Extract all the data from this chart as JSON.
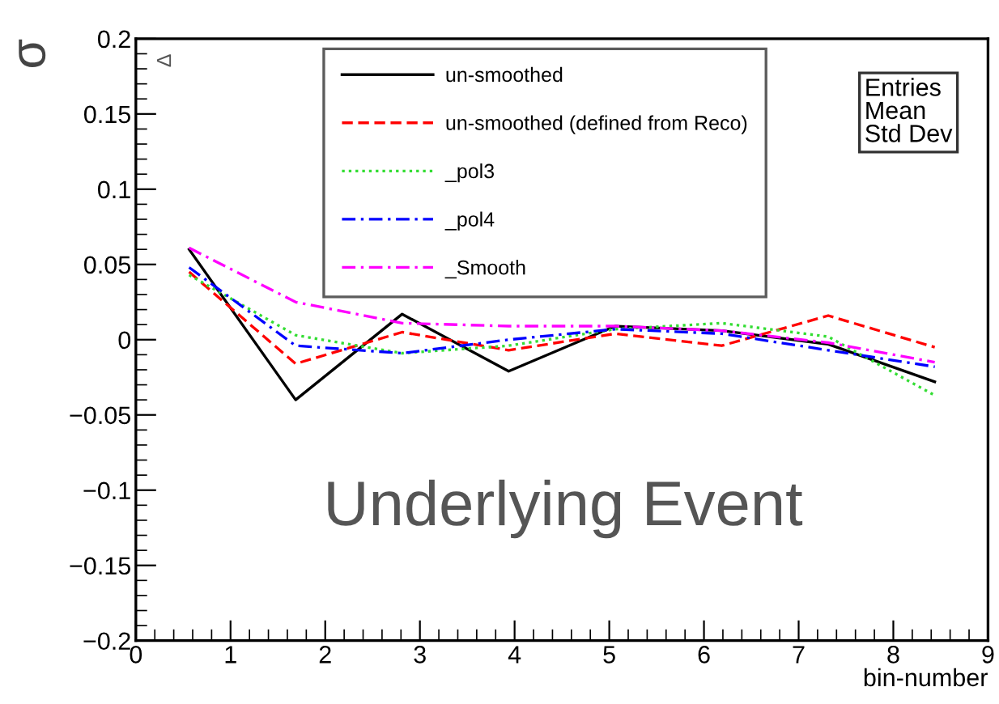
{
  "chart_data": {
    "type": "line",
    "xlabel": "bin-number",
    "ylabel": "σ",
    "x": [
      0.5625,
      1.6875,
      2.8125,
      3.9375,
      5.0625,
      6.1875,
      7.3125,
      8.4375
    ],
    "series": [
      {
        "name": "un-smoothed",
        "color": "#000000",
        "line_style": "solid",
        "values": [
          0.06,
          -0.04,
          0.017,
          -0.021,
          0.009,
          0.006,
          -0.003,
          -0.028
        ]
      },
      {
        "name": "un-smoothed (defined from Reco)",
        "color": "#ff0000",
        "line_style": "dashed",
        "values": [
          0.045,
          -0.016,
          0.005,
          -0.007,
          0.004,
          -0.004,
          0.016,
          -0.005
        ]
      },
      {
        "name": "_pol3",
        "color": "#33dd33",
        "line_style": "dotted",
        "values": [
          0.043,
          0.003,
          -0.009,
          -0.004,
          0.007,
          0.011,
          0.002,
          -0.037
        ]
      },
      {
        "name": "_pol4",
        "color": "#0000ff",
        "line_style": "dashdot",
        "values": [
          0.048,
          -0.004,
          -0.009,
          0.0,
          0.007,
          0.004,
          -0.007,
          -0.018
        ]
      },
      {
        "name": "_Smooth",
        "color": "#ff00ff",
        "line_style": "dashdot",
        "values": [
          0.061,
          0.025,
          0.011,
          0.009,
          0.009,
          0.006,
          -0.002,
          -0.015
        ]
      }
    ],
    "xlim": [
      0,
      9
    ],
    "xticks": [
      0,
      1,
      2,
      3,
      4,
      5,
      6,
      7,
      8,
      9
    ],
    "ylim": [
      -0.2,
      0.2
    ],
    "yticks": [
      {
        "value": -0.2,
        "label": "−0.2"
      },
      {
        "value": -0.15,
        "label": "−0.15"
      },
      {
        "value": -0.1,
        "label": "−0.1"
      },
      {
        "value": -0.05,
        "label": "−0.05"
      },
      0,
      0.05,
      0.1,
      0.15,
      0.2
    ],
    "grid": false,
    "legend": "top",
    "marker": "none",
    "annotations": [
      "Δ",
      "Underlying Event",
      "Entries",
      "Mean",
      "Std Dev"
    ]
  }
}
